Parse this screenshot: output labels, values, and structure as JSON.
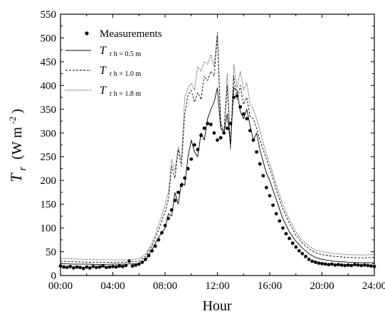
{
  "chart_data": {
    "type": "line",
    "xlabel": "Hour",
    "ylabel": {
      "symbol": "T",
      "subscript": "r",
      "unit_prefix": "(W m",
      "unit_exp": "-2",
      "unit_suffix": ")"
    },
    "xlim": [
      "00:00",
      "24:00"
    ],
    "ylim": [
      0,
      550
    ],
    "x_ticks": [
      "00:00",
      "04:00",
      "08:00",
      "12:00",
      "16:00",
      "20:00",
      "24:00"
    ],
    "y_ticks": [
      "0",
      "50",
      "100",
      "150",
      "200",
      "250",
      "300",
      "350",
      "400",
      "450",
      "500",
      "550"
    ],
    "legend_position": "top-left",
    "legend": [
      {
        "kind": "marker",
        "label": "Measurements"
      },
      {
        "kind": "line",
        "style": "solid",
        "label_main": "T",
        "label_sub": "r h = 0.5 m"
      },
      {
        "kind": "line",
        "style": "dashed",
        "label_main": "T",
        "label_sub": "r h = 1.0 m"
      },
      {
        "kind": "line",
        "style": "dotted",
        "label_main": "T",
        "label_sub": "r h = 1.8 m"
      }
    ],
    "series": [
      {
        "kind": "scatter",
        "points": [
          [
            "00:00",
            20
          ],
          [
            "00:15",
            18
          ],
          [
            "00:30",
            17
          ],
          [
            "00:45",
            19
          ],
          [
            "01:00",
            16
          ],
          [
            "01:15",
            18
          ],
          [
            "01:30",
            17
          ],
          [
            "01:45",
            15
          ],
          [
            "02:00",
            18
          ],
          [
            "02:15",
            16
          ],
          [
            "02:30",
            19
          ],
          [
            "02:45",
            17
          ],
          [
            "03:00",
            18
          ],
          [
            "03:15",
            20
          ],
          [
            "03:30",
            17
          ],
          [
            "03:45",
            18
          ],
          [
            "04:00",
            19
          ],
          [
            "04:15",
            18
          ],
          [
            "04:30",
            20
          ],
          [
            "04:45",
            19
          ],
          [
            "05:00",
            21
          ],
          [
            "05:15",
            30
          ],
          [
            "05:30",
            20
          ],
          [
            "05:45",
            22
          ],
          [
            "06:00",
            24
          ],
          [
            "06:15",
            28
          ],
          [
            "06:30",
            34
          ],
          [
            "06:45",
            42
          ],
          [
            "07:00",
            52
          ],
          [
            "07:15",
            62
          ],
          [
            "07:30",
            75
          ],
          [
            "07:45",
            90
          ],
          [
            "08:00",
            105
          ],
          [
            "08:15",
            120
          ],
          [
            "08:30",
            138
          ],
          [
            "08:45",
            158
          ],
          [
            "09:00",
            175
          ],
          [
            "09:15",
            190
          ],
          [
            "09:30",
            205
          ],
          [
            "09:45",
            225
          ],
          [
            "10:00",
            245
          ],
          [
            "10:15",
            275
          ],
          [
            "10:30",
            265
          ],
          [
            "10:45",
            295
          ],
          [
            "11:00",
            310
          ],
          [
            "11:15",
            320
          ],
          [
            "11:30",
            318
          ],
          [
            "11:45",
            300
          ],
          [
            "12:00",
            285
          ],
          [
            "12:15",
            290
          ],
          [
            "12:30",
            300
          ],
          [
            "12:45",
            310
          ],
          [
            "13:00",
            320
          ],
          [
            "13:15",
            375
          ],
          [
            "13:30",
            378
          ],
          [
            "13:45",
            355
          ],
          [
            "14:00",
            340
          ],
          [
            "14:15",
            330
          ],
          [
            "14:30",
            305
          ],
          [
            "14:45",
            285
          ],
          [
            "15:00",
            260
          ],
          [
            "15:15",
            235
          ],
          [
            "15:30",
            210
          ],
          [
            "15:45",
            185
          ],
          [
            "16:00",
            168
          ],
          [
            "16:15",
            148
          ],
          [
            "16:30",
            130
          ],
          [
            "16:45",
            115
          ],
          [
            "17:00",
            100
          ],
          [
            "17:15",
            88
          ],
          [
            "17:30",
            78
          ],
          [
            "17:45",
            68
          ],
          [
            "18:00",
            60
          ],
          [
            "18:15",
            52
          ],
          [
            "18:30",
            46
          ],
          [
            "18:45",
            40
          ],
          [
            "19:00",
            34
          ],
          [
            "19:15",
            30
          ],
          [
            "19:30",
            28
          ],
          [
            "19:45",
            26
          ],
          [
            "20:00",
            25
          ],
          [
            "20:15",
            24
          ],
          [
            "20:30",
            23
          ],
          [
            "20:45",
            24
          ],
          [
            "21:00",
            22
          ],
          [
            "21:15",
            23
          ],
          [
            "21:30",
            22
          ],
          [
            "21:45",
            21
          ],
          [
            "22:00",
            22
          ],
          [
            "22:15",
            21
          ],
          [
            "22:30",
            23
          ],
          [
            "22:45",
            22
          ],
          [
            "23:00",
            21
          ],
          [
            "23:15",
            22
          ],
          [
            "23:30",
            21
          ],
          [
            "23:45",
            20
          ],
          [
            "24:00",
            19
          ]
        ]
      },
      {
        "kind": "line",
        "style": "solid",
        "points": [
          [
            "00:00",
            25
          ],
          [
            "01:00",
            24
          ],
          [
            "02:00",
            24
          ],
          [
            "03:00",
            23
          ],
          [
            "04:00",
            24
          ],
          [
            "05:00",
            24
          ],
          [
            "06:00",
            25
          ],
          [
            "06:30",
            32
          ],
          [
            "07:00",
            55
          ],
          [
            "07:30",
            80
          ],
          [
            "08:00",
            100
          ],
          [
            "08:15",
            130
          ],
          [
            "08:30",
            125
          ],
          [
            "08:45",
            175
          ],
          [
            "09:00",
            150
          ],
          [
            "09:15",
            195
          ],
          [
            "09:30",
            190
          ],
          [
            "09:45",
            250
          ],
          [
            "10:00",
            285
          ],
          [
            "10:15",
            260
          ],
          [
            "10:30",
            250
          ],
          [
            "10:45",
            300
          ],
          [
            "11:00",
            285
          ],
          [
            "11:15",
            330
          ],
          [
            "11:30",
            350
          ],
          [
            "11:45",
            365
          ],
          [
            "12:00",
            395
          ],
          [
            "12:15",
            310
          ],
          [
            "12:30",
            300
          ],
          [
            "12:45",
            340
          ],
          [
            "13:00",
            275
          ],
          [
            "13:15",
            395
          ],
          [
            "13:30",
            390
          ],
          [
            "13:45",
            345
          ],
          [
            "14:00",
            330
          ],
          [
            "14:15",
            350
          ],
          [
            "14:30",
            315
          ],
          [
            "14:45",
            285
          ],
          [
            "15:00",
            300
          ],
          [
            "15:15",
            265
          ],
          [
            "15:30",
            240
          ],
          [
            "15:45",
            215
          ],
          [
            "16:00",
            200
          ],
          [
            "16:15",
            180
          ],
          [
            "16:30",
            160
          ],
          [
            "16:45",
            140
          ],
          [
            "17:00",
            120
          ],
          [
            "17:30",
            92
          ],
          [
            "18:00",
            72
          ],
          [
            "18:30",
            58
          ],
          [
            "19:00",
            46
          ],
          [
            "19:30",
            38
          ],
          [
            "20:00",
            34
          ],
          [
            "21:00",
            30
          ],
          [
            "22:00",
            28
          ],
          [
            "23:00",
            27
          ],
          [
            "24:00",
            27
          ]
        ]
      },
      {
        "kind": "line",
        "style": "dashed",
        "points": [
          [
            "00:00",
            30
          ],
          [
            "01:00",
            29
          ],
          [
            "02:00",
            28
          ],
          [
            "03:00",
            28
          ],
          [
            "04:00",
            28
          ],
          [
            "05:00",
            28
          ],
          [
            "06:00",
            30
          ],
          [
            "06:30",
            40
          ],
          [
            "07:00",
            62
          ],
          [
            "07:30",
            95
          ],
          [
            "08:00",
            135
          ],
          [
            "08:15",
            160
          ],
          [
            "08:30",
            230
          ],
          [
            "08:45",
            205
          ],
          [
            "09:00",
            265
          ],
          [
            "09:15",
            230
          ],
          [
            "09:30",
            340
          ],
          [
            "09:45",
            380
          ],
          [
            "10:00",
            390
          ],
          [
            "10:15",
            365
          ],
          [
            "10:30",
            385
          ],
          [
            "10:45",
            370
          ],
          [
            "11:00",
            420
          ],
          [
            "11:15",
            410
          ],
          [
            "11:30",
            430
          ],
          [
            "11:45",
            420
          ],
          [
            "12:00",
            505
          ],
          [
            "12:15",
            320
          ],
          [
            "12:30",
            300
          ],
          [
            "12:45",
            400
          ],
          [
            "13:00",
            270
          ],
          [
            "13:15",
            420
          ],
          [
            "13:30",
            370
          ],
          [
            "13:45",
            400
          ],
          [
            "14:00",
            360
          ],
          [
            "14:15",
            375
          ],
          [
            "14:30",
            335
          ],
          [
            "14:45",
            330
          ],
          [
            "15:00",
            310
          ],
          [
            "15:15",
            285
          ],
          [
            "15:30",
            265
          ],
          [
            "15:45",
            245
          ],
          [
            "16:00",
            225
          ],
          [
            "16:15",
            205
          ],
          [
            "16:30",
            180
          ],
          [
            "16:45",
            160
          ],
          [
            "17:00",
            140
          ],
          [
            "17:30",
            110
          ],
          [
            "18:00",
            85
          ],
          [
            "18:30",
            68
          ],
          [
            "19:00",
            56
          ],
          [
            "19:30",
            48
          ],
          [
            "20:00",
            44
          ],
          [
            "21:00",
            40
          ],
          [
            "22:00",
            38
          ],
          [
            "23:00",
            37
          ],
          [
            "24:00",
            38
          ]
        ]
      },
      {
        "kind": "line",
        "style": "dotted",
        "points": [
          [
            "00:00",
            36
          ],
          [
            "01:00",
            35
          ],
          [
            "02:00",
            34
          ],
          [
            "03:00",
            33
          ],
          [
            "04:00",
            33
          ],
          [
            "05:00",
            33
          ],
          [
            "06:00",
            35
          ],
          [
            "06:30",
            45
          ],
          [
            "07:00",
            68
          ],
          [
            "07:30",
            105
          ],
          [
            "08:00",
            150
          ],
          [
            "08:15",
            175
          ],
          [
            "08:30",
            245
          ],
          [
            "08:45",
            220
          ],
          [
            "09:00",
            270
          ],
          [
            "09:15",
            245
          ],
          [
            "09:30",
            375
          ],
          [
            "09:45",
            395
          ],
          [
            "10:00",
            405
          ],
          [
            "10:15",
            390
          ],
          [
            "10:30",
            440
          ],
          [
            "10:45",
            430
          ],
          [
            "11:00",
            450
          ],
          [
            "11:15",
            445
          ],
          [
            "11:30",
            465
          ],
          [
            "11:45",
            440
          ],
          [
            "12:00",
            512
          ],
          [
            "12:15",
            325
          ],
          [
            "12:30",
            300
          ],
          [
            "12:45",
            425
          ],
          [
            "13:00",
            265
          ],
          [
            "13:15",
            445
          ],
          [
            "13:30",
            395
          ],
          [
            "13:45",
            430
          ],
          [
            "14:00",
            390
          ],
          [
            "14:15",
            405
          ],
          [
            "14:30",
            360
          ],
          [
            "14:45",
            350
          ],
          [
            "15:00",
            330
          ],
          [
            "15:15",
            305
          ],
          [
            "15:30",
            280
          ],
          [
            "15:45",
            255
          ],
          [
            "16:00",
            235
          ],
          [
            "16:15",
            215
          ],
          [
            "16:30",
            190
          ],
          [
            "16:45",
            170
          ],
          [
            "17:00",
            150
          ],
          [
            "17:30",
            118
          ],
          [
            "18:00",
            92
          ],
          [
            "18:30",
            74
          ],
          [
            "19:00",
            62
          ],
          [
            "19:30",
            54
          ],
          [
            "20:00",
            50
          ],
          [
            "21:00",
            46
          ],
          [
            "22:00",
            44
          ],
          [
            "23:00",
            43
          ],
          [
            "24:00",
            44
          ]
        ]
      }
    ]
  }
}
